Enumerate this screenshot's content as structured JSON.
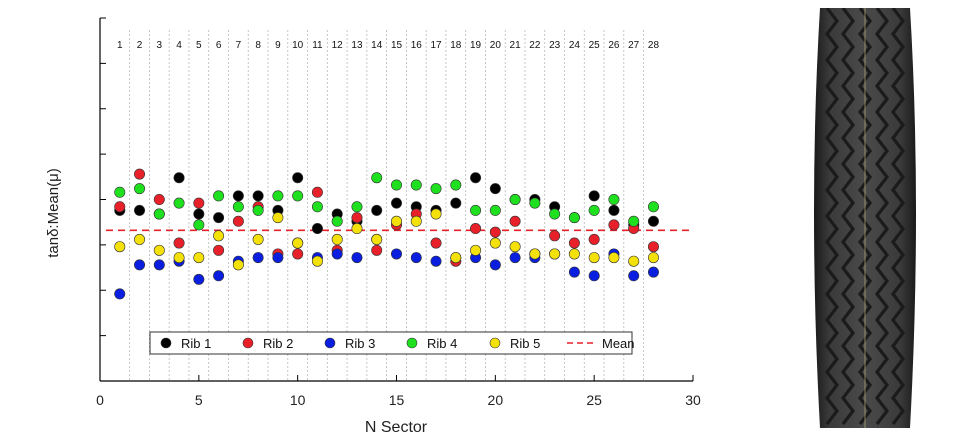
{
  "chart_data": {
    "type": "scatter",
    "title": "",
    "xlabel": "N Sector",
    "ylabel": "tanδ:Mean(μ)",
    "xlim": [
      0,
      30
    ],
    "xticks": [
      0,
      5,
      10,
      15,
      20,
      25,
      30
    ],
    "ylim": [
      0.0,
      1.0
    ],
    "grid": false,
    "legend_position": "bottom-center",
    "sector_labels": [
      "1",
      "2",
      "3",
      "4",
      "5",
      "6",
      "7",
      "8",
      "9",
      "10",
      "11",
      "12",
      "13",
      "14",
      "15",
      "16",
      "17",
      "18",
      "19",
      "20",
      "21",
      "22",
      "23",
      "24",
      "25",
      "26",
      "27",
      "28"
    ],
    "mean": {
      "name": "Mean",
      "value": 0.415,
      "color": "#e8202a"
    },
    "series": [
      {
        "name": "Rib 1",
        "color": "#000000",
        "values": [
          0.47,
          0.47,
          0.46,
          0.56,
          0.46,
          0.45,
          0.51,
          0.51,
          0.47,
          0.56,
          0.42,
          0.46,
          0.44,
          0.47,
          0.49,
          0.48,
          0.47,
          0.49,
          0.56,
          0.53,
          0.5,
          0.5,
          0.48,
          0.45,
          0.51,
          0.47,
          0.43,
          0.44
        ]
      },
      {
        "name": "Rib 2",
        "color": "#e8202a",
        "values": [
          0.48,
          0.57,
          0.5,
          0.38,
          0.49,
          0.36,
          0.44,
          0.48,
          0.35,
          0.35,
          0.52,
          0.36,
          0.45,
          0.36,
          0.43,
          0.46,
          0.38,
          0.33,
          0.42,
          0.41,
          0.44,
          0.35,
          0.4,
          0.38,
          0.39,
          0.43,
          0.42,
          0.37
        ]
      },
      {
        "name": "Rib 3",
        "color": "#0a1ee0",
        "values": [
          0.24,
          0.32,
          0.32,
          0.33,
          0.28,
          0.29,
          0.33,
          0.34,
          0.34,
          0.38,
          0.34,
          0.35,
          0.34,
          0.39,
          0.35,
          0.34,
          0.33,
          0.34,
          0.34,
          0.32,
          0.34,
          0.34,
          0.35,
          0.3,
          0.29,
          0.35,
          0.29,
          0.3
        ]
      },
      {
        "name": "Rib 4",
        "color": "#1ee01e",
        "values": [
          0.52,
          0.53,
          0.46,
          0.49,
          0.43,
          0.51,
          0.48,
          0.47,
          0.51,
          0.51,
          0.48,
          0.44,
          0.48,
          0.56,
          0.54,
          0.54,
          0.53,
          0.54,
          0.47,
          0.47,
          0.5,
          0.49,
          0.46,
          0.45,
          0.47,
          0.5,
          0.44,
          0.48
        ]
      },
      {
        "name": "Rib 5",
        "color": "#f5e10a",
        "values": [
          0.37,
          0.39,
          0.36,
          0.34,
          0.34,
          0.4,
          0.32,
          0.39,
          0.45,
          0.38,
          0.33,
          0.39,
          0.42,
          0.39,
          0.44,
          0.44,
          0.46,
          0.34,
          0.36,
          0.38,
          0.37,
          0.35,
          0.35,
          0.35,
          0.34,
          0.34,
          0.33,
          0.34
        ]
      }
    ]
  },
  "tire_image": {
    "name": "tire-tread-photo"
  }
}
